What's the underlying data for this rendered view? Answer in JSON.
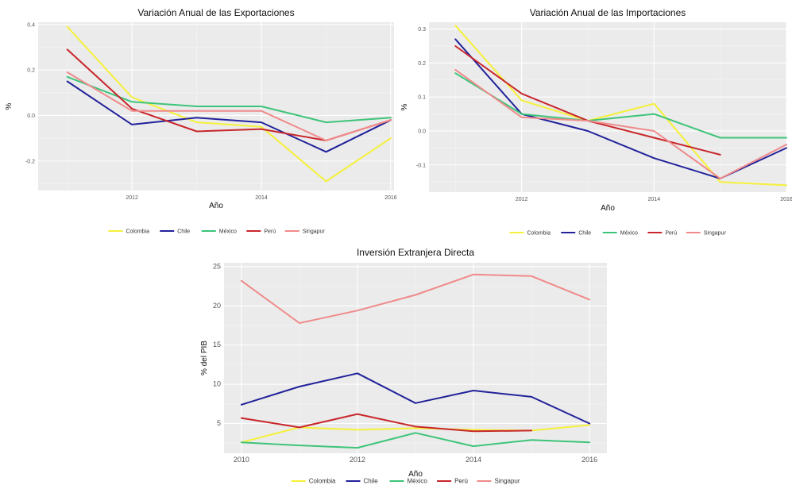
{
  "chart_data": [
    {
      "type": "line",
      "title": "Variación Anual de las Exportaciones",
      "xlabel": "Año",
      "ylabel": "%",
      "x": [
        2011,
        2012,
        2013,
        2014,
        2015,
        2016
      ],
      "xticks": [
        2012,
        2014,
        2016
      ],
      "yticks": [
        -0.2,
        0.0,
        0.2,
        0.4
      ],
      "ytick_labels": [
        "-0.2",
        "0.0",
        "0.2",
        "0.4"
      ],
      "xlim": [
        2010.55,
        2016.05
      ],
      "ylim": [
        -0.33,
        0.41
      ],
      "grid": true,
      "legend_position": "bottom",
      "series": [
        {
          "name": "Colombia",
          "color": "#f5f03a",
          "values": [
            0.39,
            0.08,
            -0.03,
            -0.05,
            -0.29,
            -0.1
          ]
        },
        {
          "name": "Chile",
          "color": "#22229a",
          "values": [
            0.15,
            -0.04,
            -0.01,
            -0.03,
            -0.16,
            -0.02
          ]
        },
        {
          "name": "México",
          "color": "#3ec47a",
          "values": [
            0.17,
            0.06,
            0.04,
            0.04,
            -0.03,
            -0.01
          ]
        },
        {
          "name": "Perú",
          "color": "#c8262b",
          "values": [
            0.29,
            0.03,
            -0.07,
            -0.06,
            -0.11,
            -0.02
          ]
        },
        {
          "name": "Singapur",
          "color": "#f08a8a",
          "values": [
            0.19,
            0.02,
            0.02,
            0.02,
            -0.11,
            -0.02
          ]
        }
      ]
    },
    {
      "type": "line",
      "title": "Variación Anual de las Importaciones",
      "xlabel": "Año",
      "ylabel": "%",
      "x": [
        2011,
        2012,
        2013,
        2014,
        2015,
        2016
      ],
      "xticks": [
        2012,
        2014,
        2016
      ],
      "yticks": [
        -0.1,
        0.0,
        0.1,
        0.2,
        0.3
      ],
      "ytick_labels": [
        "-0.1",
        "0.0",
        "0.1",
        "0.2",
        "0.3"
      ],
      "xlim": [
        2010.6,
        2016.0
      ],
      "ylim": [
        -0.18,
        0.32
      ],
      "grid": true,
      "legend_position": "bottom",
      "series": [
        {
          "name": "Colombia",
          "color": "#f5f03a",
          "values": [
            0.31,
            0.09,
            0.03,
            0.08,
            -0.15,
            -0.16
          ]
        },
        {
          "name": "Chile",
          "color": "#22229a",
          "values": [
            0.27,
            0.05,
            0.0,
            -0.08,
            -0.14,
            -0.05
          ]
        },
        {
          "name": "México",
          "color": "#3ec47a",
          "values": [
            0.17,
            0.05,
            0.03,
            0.05,
            -0.02,
            -0.02
          ]
        },
        {
          "name": "Perú",
          "color": "#c8262b",
          "values": [
            0.25,
            0.11,
            0.03,
            -0.02,
            -0.07,
            null
          ]
        },
        {
          "name": "Singapur",
          "color": "#f08a8a",
          "values": [
            0.18,
            0.04,
            0.03,
            0.0,
            -0.14,
            -0.04
          ]
        }
      ]
    },
    {
      "type": "line",
      "title": "Inversión Extranjera Directa",
      "xlabel": "Año",
      "ylabel": "% del PIB",
      "x": [
        2010,
        2011,
        2012,
        2013,
        2014,
        2015,
        2016
      ],
      "xticks": [
        2010,
        2012,
        2014,
        2016
      ],
      "yticks": [
        5,
        10,
        15,
        20,
        25
      ],
      "ytick_labels": [
        "5",
        "10",
        "15",
        "20",
        "25"
      ],
      "xlim": [
        2009.7,
        2016.3
      ],
      "ylim": [
        1.2,
        25.5
      ],
      "grid": true,
      "legend_position": "bottom",
      "series": [
        {
          "name": "Colombia",
          "color": "#f5f03a",
          "values": [
            2.6,
            4.5,
            4.2,
            4.4,
            4.2,
            4.1,
            4.8
          ]
        },
        {
          "name": "Chile",
          "color": "#22229a",
          "values": [
            7.4,
            9.7,
            11.4,
            7.6,
            9.2,
            8.4,
            5.0
          ]
        },
        {
          "name": "México",
          "color": "#3ec47a",
          "values": [
            2.6,
            2.2,
            1.9,
            3.8,
            2.1,
            2.9,
            2.6
          ]
        },
        {
          "name": "Perú",
          "color": "#c8262b",
          "values": [
            5.7,
            4.5,
            6.2,
            4.6,
            4.0,
            4.1,
            null
          ]
        },
        {
          "name": "Singapur",
          "color": "#f08a8a",
          "values": [
            23.2,
            17.8,
            19.4,
            21.4,
            24.0,
            23.8,
            20.8
          ]
        }
      ]
    }
  ]
}
